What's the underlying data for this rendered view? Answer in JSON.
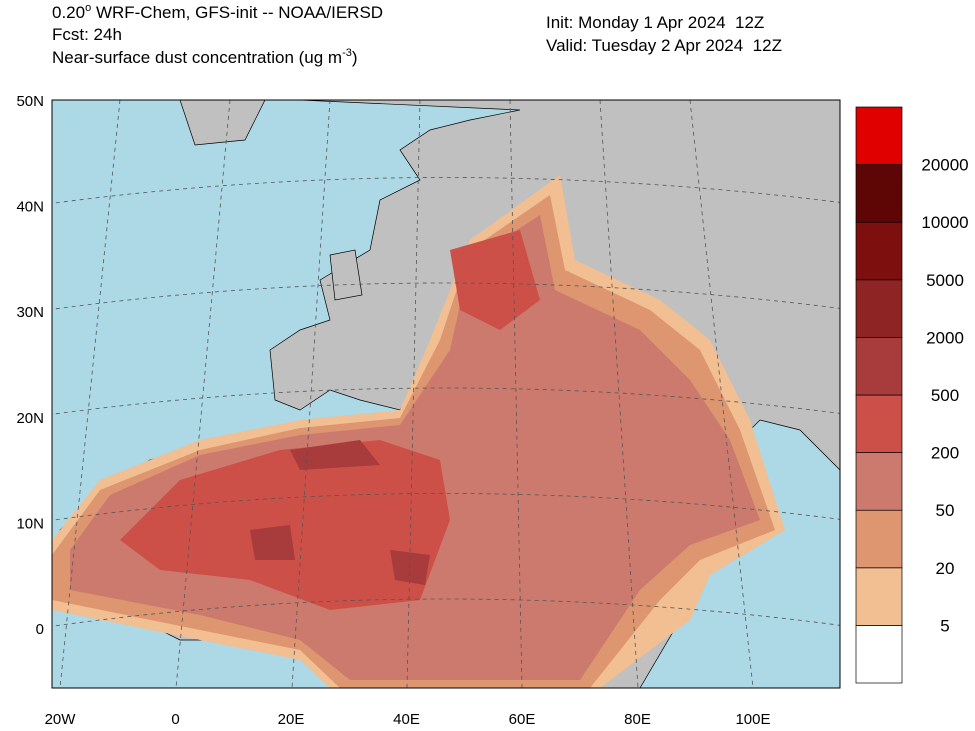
{
  "header": {
    "model_pre": "0.20",
    "degree": "o",
    "model": " WRF-Chem, GFS-init -- NOAA/IERSD",
    "forecast": "Fcst: 24h",
    "field": "Near-surface dust concentration (ug m",
    "unit_exp": "-3",
    "field_end": ")",
    "init": "Init: Monday 1 Apr 2024  12Z",
    "valid": "Valid: Tuesday 2 Apr 2024  12Z"
  },
  "map": {
    "lat_labels": [
      "50N",
      "40N",
      "30N",
      "20N",
      "10N",
      "0"
    ],
    "lon_labels": [
      "20W",
      "0",
      "20E",
      "40E",
      "60E",
      "80E",
      "100E"
    ]
  },
  "colorbar": {
    "levels": [
      5,
      20,
      50,
      200,
      500,
      2000,
      5000,
      10000,
      20000
    ],
    "colors": [
      "#ffffff",
      "#f1bf91",
      "#de9670",
      "#cc7a6e",
      "#cc5048",
      "#a83c3c",
      "#8e2424",
      "#7e0f0f",
      "#5e0505",
      "#e00000"
    ]
  }
}
